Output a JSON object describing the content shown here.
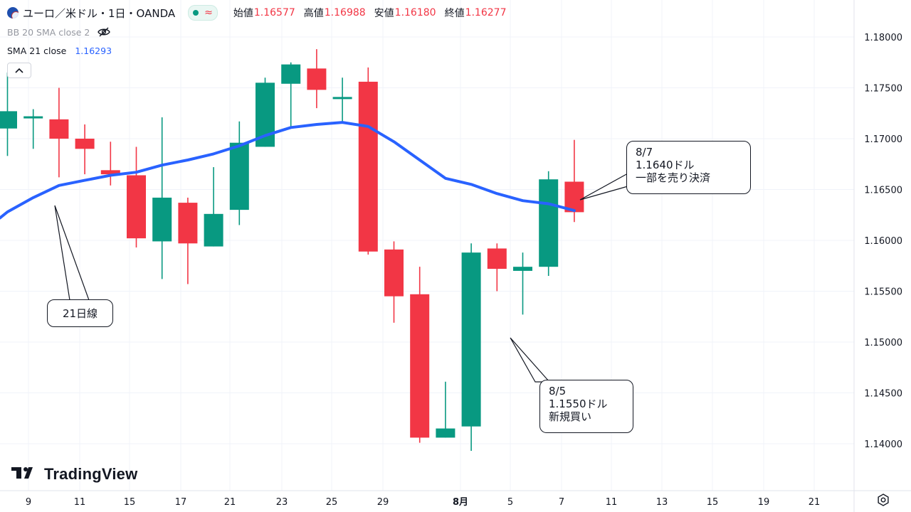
{
  "header": {
    "symbol_title": "ユーロ／米ドル・1日・OANDA",
    "status_dot_color": "#089981",
    "status_icon": "wave-icon",
    "status_glyph": "≈",
    "ohlc": [
      {
        "label": "始値",
        "value": "1.16577"
      },
      {
        "label": "高値",
        "value": "1.16988"
      },
      {
        "label": "安値",
        "value": "1.16180"
      },
      {
        "label": "終値",
        "value": "1.16277"
      }
    ],
    "ohlc_value_color": "#f23645"
  },
  "indicators": {
    "bb_label": "BB 20 SMA close 2",
    "bb_icon": "eye-off-icon",
    "sma_label": "SMA 21 close",
    "sma_value": "1.16293",
    "sma_color": "#2962ff"
  },
  "collapse_button": {
    "glyph": "^"
  },
  "annotations": {
    "ma_label": "21日線",
    "buy": {
      "line1": "8/5",
      "line2": "1.1550ドル",
      "line3": "新規買い"
    },
    "sell": {
      "line1": "8/7",
      "line2": "1.1640ドル",
      "line3": "一部を売り決済"
    }
  },
  "logo": {
    "text": "TradingView",
    "icon": "tradingview-logo-icon"
  },
  "chart_data": {
    "type": "candlestick",
    "up_color": "#089981",
    "down_color": "#f23645",
    "ma_color": "#2962ff",
    "y_range": [
      1.1375,
      1.1822
    ],
    "y_ticks": [
      "1.18000",
      "1.17500",
      "1.17000",
      "1.16500",
      "1.16000",
      "1.15500",
      "1.15000",
      "1.14500",
      "1.14000"
    ],
    "x_ticks": [
      "9",
      "11",
      "15",
      "17",
      "21",
      "23",
      "25",
      "29",
      "8月",
      "5",
      "7",
      "11",
      "13",
      "15",
      "19",
      "21"
    ],
    "candles": [
      {
        "date": "7/8",
        "open": 1.171,
        "high": 1.1765,
        "low": 1.1683,
        "close": 1.1727
      },
      {
        "date": "7/9",
        "open": 1.1722,
        "high": 1.1729,
        "low": 1.169,
        "close": 1.1722
      },
      {
        "date": "7/10",
        "open": 1.1719,
        "high": 1.175,
        "low": 1.1662,
        "close": 1.17
      },
      {
        "date": "7/11",
        "open": 1.17,
        "high": 1.1714,
        "low": 1.1665,
        "close": 1.169
      },
      {
        "date": "7/14",
        "open": 1.1669,
        "high": 1.1697,
        "low": 1.1654,
        "close": 1.1665
      },
      {
        "date": "7/15",
        "open": 1.1664,
        "high": 1.1692,
        "low": 1.1593,
        "close": 1.1602
      },
      {
        "date": "7/16",
        "open": 1.1599,
        "high": 1.1721,
        "low": 1.1562,
        "close": 1.1642
      },
      {
        "date": "7/17",
        "open": 1.1637,
        "high": 1.1642,
        "low": 1.1557,
        "close": 1.1597
      },
      {
        "date": "7/18",
        "open": 1.1594,
        "high": 1.1672,
        "low": 1.1594,
        "close": 1.1626
      },
      {
        "date": "7/21",
        "open": 1.163,
        "high": 1.1717,
        "low": 1.1615,
        "close": 1.1696
      },
      {
        "date": "7/22",
        "open": 1.1692,
        "high": 1.176,
        "low": 1.1692,
        "close": 1.1755
      },
      {
        "date": "7/23",
        "open": 1.1754,
        "high": 1.1775,
        "low": 1.171,
        "close": 1.1773
      },
      {
        "date": "7/24",
        "open": 1.1769,
        "high": 1.1788,
        "low": 1.173,
        "close": 1.1748
      },
      {
        "date": "7/25",
        "open": 1.174,
        "high": 1.176,
        "low": 1.1716,
        "close": 1.1741
      },
      {
        "date": "7/28",
        "open": 1.1756,
        "high": 1.177,
        "low": 1.1586,
        "close": 1.1589
      },
      {
        "date": "7/29",
        "open": 1.1591,
        "high": 1.1599,
        "low": 1.1519,
        "close": 1.1545
      },
      {
        "date": "7/30",
        "open": 1.1547,
        "high": 1.1574,
        "low": 1.1401,
        "close": 1.1406
      },
      {
        "date": "7/31",
        "open": 1.1406,
        "high": 1.1461,
        "low": 1.1406,
        "close": 1.1415
      },
      {
        "date": "8/1",
        "open": 1.1417,
        "high": 1.1597,
        "low": 1.1393,
        "close": 1.1588
      },
      {
        "date": "8/4",
        "open": 1.1592,
        "high": 1.1597,
        "low": 1.155,
        "close": 1.1572
      },
      {
        "date": "8/5",
        "open": 1.157,
        "high": 1.1588,
        "low": 1.1527,
        "close": 1.1574
      },
      {
        "date": "8/6",
        "open": 1.1574,
        "high": 1.1668,
        "low": 1.1565,
        "close": 1.166
      },
      {
        "date": "8/7",
        "open": 1.16577,
        "high": 1.16988,
        "low": 1.1618,
        "close": 1.16277
      }
    ],
    "sma21": [
      1.1628,
      1.1642,
      1.1654,
      1.1659,
      1.1664,
      1.1667,
      1.1674,
      1.1679,
      1.1685,
      1.1693,
      1.1703,
      1.1711,
      1.1714,
      1.1716,
      1.1712,
      1.1697,
      1.1679,
      1.1661,
      1.1655,
      1.1646,
      1.1639,
      1.1636,
      1.16293
    ]
  }
}
